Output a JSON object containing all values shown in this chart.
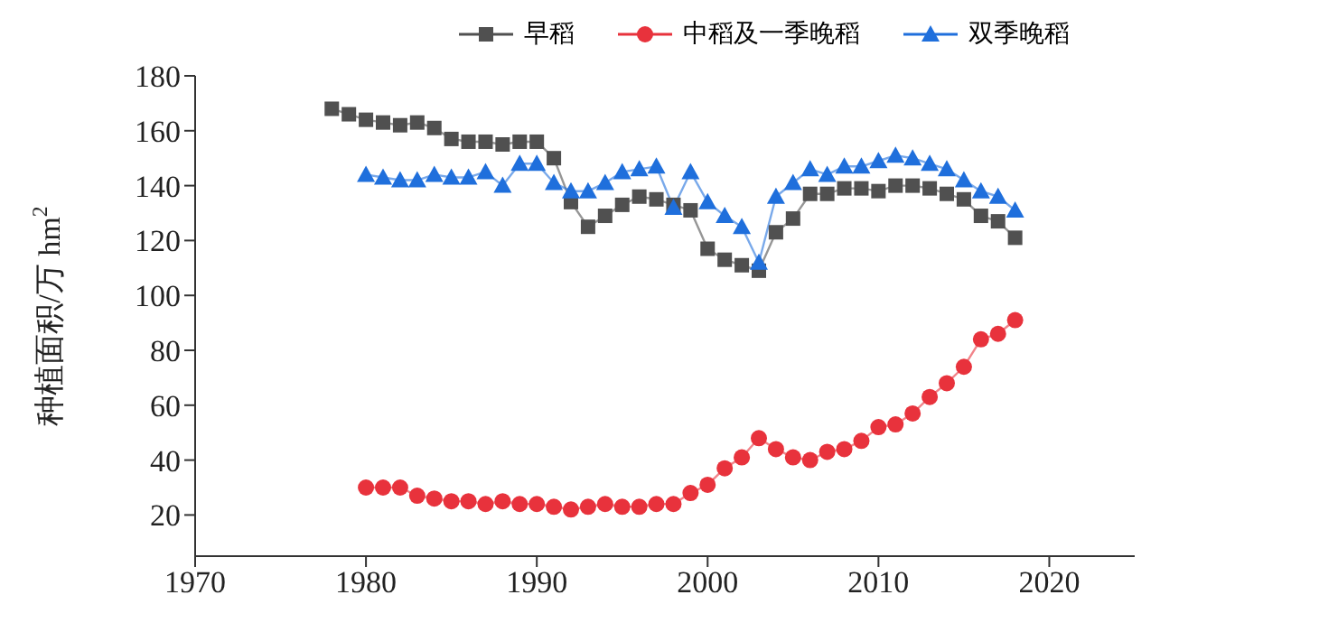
{
  "chart_data": {
    "type": "line",
    "ylabel": "种植面积/万 hm$^{2}$",
    "xlim": [
      1970,
      2025
    ],
    "xticks": [
      1970,
      1980,
      1990,
      2000,
      2010,
      2020
    ],
    "ylim": [
      5,
      180
    ],
    "yticks": [
      20,
      40,
      60,
      80,
      100,
      120,
      140,
      160,
      180
    ],
    "grid": false,
    "legend": "top",
    "series": [
      {
        "name": "早稻",
        "color": "#505050",
        "marker": "square",
        "x": [
          1978,
          1979,
          1980,
          1981,
          1982,
          1983,
          1984,
          1985,
          1986,
          1987,
          1988,
          1989,
          1990,
          1991,
          1992,
          1993,
          1994,
          1995,
          1996,
          1997,
          1998,
          1999,
          2000,
          2001,
          2002,
          2003,
          2004,
          2005,
          2006,
          2007,
          2008,
          2009,
          2010,
          2011,
          2012,
          2013,
          2014,
          2015,
          2016,
          2017,
          2018
        ],
        "values": [
          168,
          166,
          164,
          163,
          162,
          163,
          161,
          157,
          156,
          156,
          155,
          156,
          156,
          150,
          134,
          125,
          129,
          133,
          136,
          135,
          133,
          131,
          117,
          113,
          111,
          109,
          123,
          128,
          137,
          137,
          139,
          139,
          138,
          140,
          140,
          139,
          137,
          135,
          129,
          127,
          121
        ]
      },
      {
        "name": "中稻及一季晚稻",
        "color": "#e8323c",
        "marker": "circle",
        "x": [
          1980,
          1981,
          1982,
          1983,
          1984,
          1985,
          1986,
          1987,
          1988,
          1989,
          1990,
          1991,
          1992,
          1993,
          1994,
          1995,
          1996,
          1997,
          1998,
          1999,
          2000,
          2001,
          2002,
          2003,
          2004,
          2005,
          2006,
          2007,
          2008,
          2009,
          2010,
          2011,
          2012,
          2013,
          2014,
          2015,
          2016,
          2017,
          2018
        ],
        "values": [
          30,
          30,
          30,
          27,
          26,
          25,
          25,
          24,
          25,
          24,
          24,
          23,
          22,
          23,
          24,
          23,
          23,
          24,
          24,
          28,
          31,
          37,
          41,
          48,
          44,
          41,
          40,
          43,
          44,
          47,
          52,
          53,
          57,
          63,
          68,
          74,
          84,
          86,
          91
        ]
      },
      {
        "name": "双季晚稻",
        "color": "#1f6fdc",
        "marker": "triangle",
        "x": [
          1980,
          1981,
          1982,
          1983,
          1984,
          1985,
          1986,
          1987,
          1988,
          1989,
          1990,
          1991,
          1992,
          1993,
          1994,
          1995,
          1996,
          1997,
          1998,
          1999,
          2000,
          2001,
          2002,
          2003,
          2004,
          2005,
          2006,
          2007,
          2008,
          2009,
          2010,
          2011,
          2012,
          2013,
          2014,
          2015,
          2016,
          2017,
          2018
        ],
        "values": [
          144,
          143,
          142,
          142,
          144,
          143,
          143,
          145,
          140,
          148,
          148,
          141,
          138,
          138,
          141,
          145,
          146,
          147,
          132,
          145,
          134,
          129,
          125,
          112,
          136,
          141,
          146,
          144,
          147,
          147,
          149,
          151,
          150,
          148,
          146,
          142,
          138,
          136,
          131
        ]
      }
    ]
  }
}
